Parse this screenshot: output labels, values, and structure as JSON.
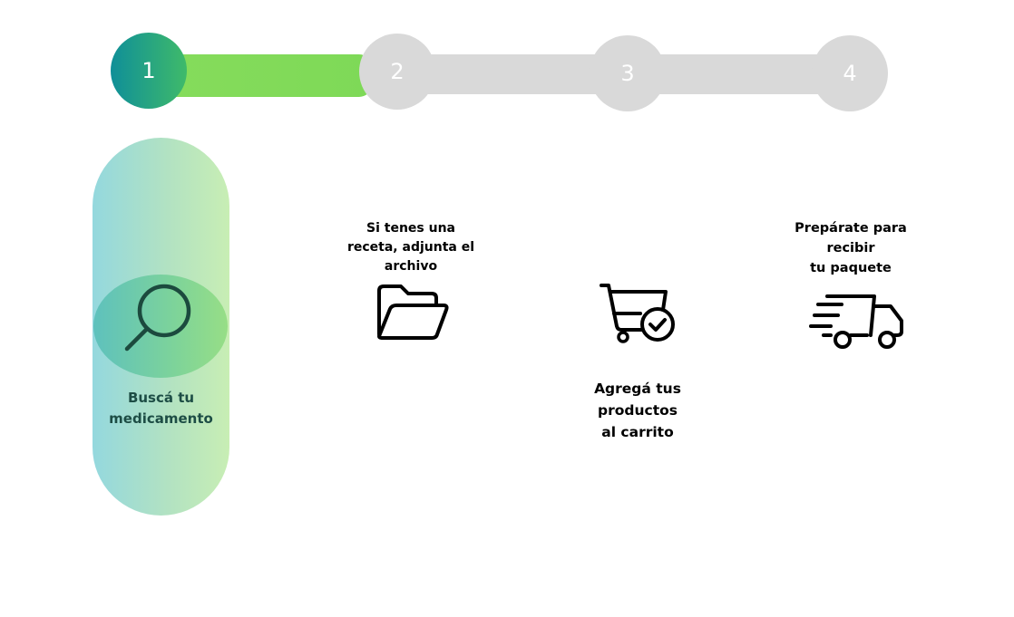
{
  "stepper": {
    "steps": [
      {
        "number": "1",
        "state": "active"
      },
      {
        "number": "2",
        "state": "inactive"
      },
      {
        "number": "3",
        "state": "inactive"
      },
      {
        "number": "4",
        "state": "inactive"
      }
    ]
  },
  "cards": [
    {
      "label": "Buscá tu\nmedicamento",
      "icon": "search-icon",
      "selected": true
    },
    {
      "label": "Si tenes una\nreceta, adjunta el\narchivo",
      "icon": "folder-open-icon"
    },
    {
      "label": "Agregá tus\nproductos\nal carrito",
      "icon": "cart-check-icon"
    },
    {
      "label": "Prepárate para\nrecibir\ntu paquete",
      "icon": "delivery-truck-icon"
    }
  ],
  "colors": {
    "active_gradient_start": "#0f8f98",
    "active_gradient_end": "#3fba6a",
    "progress_green": "#7ed957",
    "inactive_gray": "#d9d9d9",
    "selected_label": "#1d4d45"
  }
}
